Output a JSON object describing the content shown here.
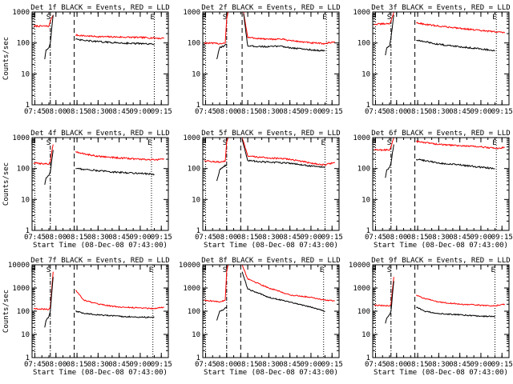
{
  "chart_data": [
    {
      "type": "line",
      "title": "Det 1f BLACK = Events, RED = LLD",
      "ylabel": "Counts/sec",
      "xlabel": "",
      "x_ticks": [
        "07:45",
        "08:00",
        "08:15",
        "08:30",
        "08:45",
        "09:00",
        "09:15"
      ],
      "y_ticks": [
        "1",
        "10",
        "100",
        "1000"
      ],
      "ylim": [
        1,
        1000
      ],
      "xlim": [
        "07:43",
        "09:20"
      ],
      "y_scale": "log",
      "markers": [
        {
          "label": "E",
          "time": "07:45",
          "style": "dotted"
        },
        {
          "label": "S",
          "time": "07:56",
          "style": "dashdot"
        },
        {
          "label": "",
          "time": "08:13",
          "style": "dashed"
        },
        {
          "label": "E",
          "time": "09:10",
          "style": "dotted"
        }
      ],
      "series": [
        {
          "color": "#ff0000",
          "x": [
            "07:44",
            "07:55",
            "07:56",
            "07:58",
            "08:13",
            "08:14",
            "08:20",
            "08:30",
            "08:45",
            "09:00",
            "09:10",
            "09:15",
            "09:17"
          ],
          "y": [
            350,
            350,
            500,
            800,
            null,
            180,
            170,
            160,
            155,
            150,
            145,
            140,
            145
          ]
        },
        {
          "color": "#000000",
          "x": [
            "07:52",
            "07:53",
            "07:55",
            "07:56",
            "07:58",
            "08:13",
            "08:14",
            "08:20",
            "08:30",
            "08:45",
            "09:00",
            "09:10"
          ],
          "y": [
            30,
            60,
            70,
            100,
            800,
            null,
            130,
            120,
            110,
            100,
            95,
            90
          ]
        }
      ]
    },
    {
      "type": "line",
      "title": "Det 2f BLACK = Events, RED = LLD",
      "ylabel": "",
      "xlabel": "",
      "x_ticks": [
        "07:45",
        "08:00",
        "08:15",
        "08:30",
        "08:45",
        "09:00",
        "09:15"
      ],
      "y_ticks": [
        "1",
        "10",
        "100",
        "1000"
      ],
      "ylim": [
        1,
        1000
      ],
      "xlim": [
        "07:43",
        "09:20"
      ],
      "y_scale": "log",
      "markers": [
        {
          "label": "E",
          "time": "07:45",
          "style": "dotted"
        },
        {
          "label": "S",
          "time": "08:00",
          "style": "dashdot"
        },
        {
          "label": "",
          "time": "08:11",
          "style": "dashed"
        },
        {
          "label": "E",
          "time": "09:11",
          "style": "dotted"
        }
      ],
      "series": [
        {
          "color": "#ff0000",
          "x": [
            "07:44",
            "07:55",
            "07:59",
            "08:00",
            "08:01",
            "08:11",
            "08:12",
            "08:15",
            "08:30",
            "08:38",
            "08:45",
            "09:00",
            "09:10",
            "09:17"
          ],
          "y": [
            100,
            95,
            100,
            600,
            1000,
            null,
            1000,
            150,
            130,
            135,
            120,
            100,
            95,
            110
          ]
        },
        {
          "color": "#000000",
          "x": [
            "07:53",
            "07:55",
            "07:58",
            "08:00",
            "08:11",
            "08:12",
            "08:15",
            "08:30",
            "08:38",
            "08:45",
            "09:00",
            "09:10"
          ],
          "y": [
            30,
            70,
            80,
            90,
            null,
            900,
            80,
            75,
            80,
            70,
            60,
            55
          ]
        }
      ]
    },
    {
      "type": "line",
      "title": "Det 3f BLACK = Events, RED = LLD",
      "ylabel": "",
      "xlabel": "",
      "x_ticks": [
        "07:45",
        "08:00",
        "08:15",
        "08:30",
        "08:45",
        "09:00",
        "09:15"
      ],
      "y_ticks": [
        "1",
        "10",
        "100",
        "1000"
      ],
      "ylim": [
        1,
        1000
      ],
      "xlim": [
        "07:43",
        "09:20"
      ],
      "y_scale": "log",
      "markers": [
        {
          "label": "E",
          "time": "07:45",
          "style": "dotted"
        },
        {
          "label": "S",
          "time": "07:56",
          "style": "dashdot"
        },
        {
          "label": "",
          "time": "08:13",
          "style": "dashed"
        },
        {
          "label": "E",
          "time": "09:11",
          "style": "dotted"
        }
      ],
      "series": [
        {
          "color": "#ff0000",
          "x": [
            "07:44",
            "07:55",
            "07:56",
            "07:58",
            "08:13",
            "08:14",
            "08:20",
            "08:30",
            "08:45",
            "09:00",
            "09:15",
            "09:17"
          ],
          "y": [
            400,
            420,
            500,
            1000,
            null,
            450,
            400,
            350,
            300,
            250,
            220,
            210
          ]
        },
        {
          "color": "#000000",
          "x": [
            "07:52",
            "07:53",
            "07:55",
            "07:56",
            "07:58",
            "08:13",
            "08:14",
            "08:20",
            "08:30",
            "08:45",
            "09:00",
            "09:10"
          ],
          "y": [
            40,
            70,
            80,
            150,
            800,
            null,
            120,
            110,
            90,
            75,
            65,
            55
          ]
        }
      ]
    },
    {
      "type": "line",
      "title": "Det 4f BLACK = Events, RED = LLD",
      "ylabel": "Counts/sec",
      "xlabel": "Start Time (08-Dec-08 07:43:00)",
      "x_ticks": [
        "07:45",
        "08:00",
        "08:15",
        "08:30",
        "08:45",
        "09:00",
        "09:15"
      ],
      "y_ticks": [
        "1",
        "10",
        "100",
        "1000"
      ],
      "ylim": [
        1,
        1000
      ],
      "xlim": [
        "07:43",
        "09:20"
      ],
      "y_scale": "log",
      "markers": [
        {
          "label": "E",
          "time": "07:45",
          "style": "dotted"
        },
        {
          "label": "S",
          "time": "07:56",
          "style": "dashdot"
        },
        {
          "label": "",
          "time": "08:13",
          "style": "dashed"
        },
        {
          "label": "E",
          "time": "09:08",
          "style": "dotted"
        }
      ],
      "series": [
        {
          "color": "#ff0000",
          "x": [
            "07:44",
            "07:55",
            "07:56",
            "07:58",
            "08:13",
            "08:14",
            "08:20",
            "08:30",
            "08:45",
            "09:00",
            "09:10",
            "09:17"
          ],
          "y": [
            150,
            140,
            170,
            600,
            null,
            350,
            300,
            250,
            220,
            200,
            190,
            200
          ]
        },
        {
          "color": "#000000",
          "x": [
            "07:52",
            "07:53",
            "07:55",
            "07:56",
            "07:58",
            "08:13",
            "08:14",
            "08:20",
            "08:30",
            "08:45",
            "09:00",
            "09:10"
          ],
          "y": [
            30,
            50,
            60,
            80,
            400,
            null,
            100,
            95,
            85,
            75,
            70,
            65
          ]
        }
      ]
    },
    {
      "type": "line",
      "title": "Det 5f BLACK = Events, RED = LLD",
      "ylabel": "",
      "xlabel": "Start Time (08-Dec-08 07:43:00)",
      "x_ticks": [
        "07:45",
        "08:00",
        "08:15",
        "08:30",
        "08:45",
        "09:00",
        "09:15"
      ],
      "y_ticks": [
        "1",
        "10",
        "100",
        "1000"
      ],
      "ylim": [
        1,
        1000
      ],
      "xlim": [
        "07:43",
        "09:20"
      ],
      "y_scale": "log",
      "markers": [
        {
          "label": "E",
          "time": "07:45",
          "style": "dotted"
        },
        {
          "label": "S",
          "time": "08:00",
          "style": "dashdot"
        },
        {
          "label": "",
          "time": "08:10",
          "style": "dashed"
        },
        {
          "label": "E",
          "time": "09:10",
          "style": "dotted"
        }
      ],
      "series": [
        {
          "color": "#ff0000",
          "x": [
            "07:44",
            "07:55",
            "07:59",
            "08:00",
            "08:01",
            "08:10",
            "08:11",
            "08:15",
            "08:30",
            "08:45",
            "09:00",
            "09:10",
            "09:17"
          ],
          "y": [
            180,
            160,
            170,
            700,
            1000,
            null,
            1000,
            250,
            220,
            200,
            150,
            130,
            160
          ]
        },
        {
          "color": "#000000",
          "x": [
            "07:53",
            "07:55",
            "07:58",
            "08:00",
            "08:10",
            "08:11",
            "08:15",
            "08:30",
            "08:45",
            "09:00",
            "09:10"
          ],
          "y": [
            40,
            90,
            120,
            130,
            null,
            900,
            180,
            160,
            150,
            120,
            110
          ]
        }
      ]
    },
    {
      "type": "line",
      "title": "Det 6f BLACK = Events, RED = LLD",
      "ylabel": "",
      "xlabel": "Start Time (08-Dec-08 07:43:00)",
      "x_ticks": [
        "07:45",
        "08:00",
        "08:15",
        "08:30",
        "08:45",
        "09:00",
        "09:15"
      ],
      "y_ticks": [
        "1",
        "10",
        "100",
        "1000"
      ],
      "ylim": [
        1,
        1000
      ],
      "xlim": [
        "07:43",
        "09:20"
      ],
      "y_scale": "log",
      "markers": [
        {
          "label": "E",
          "time": "07:45",
          "style": "dotted"
        },
        {
          "label": "S",
          "time": "07:56",
          "style": "dashdot"
        },
        {
          "label": "",
          "time": "08:13",
          "style": "dashed"
        },
        {
          "label": "E",
          "time": "09:11",
          "style": "dotted"
        }
      ],
      "series": [
        {
          "color": "#ff0000",
          "x": [
            "07:44",
            "07:55",
            "07:56",
            "07:58",
            "08:13",
            "08:14",
            "08:20",
            "08:30",
            "08:45",
            "09:00",
            "09:10",
            "09:17"
          ],
          "y": [
            400,
            400,
            500,
            1000,
            null,
            750,
            700,
            600,
            550,
            500,
            450,
            480
          ]
        },
        {
          "color": "#000000",
          "x": [
            "07:52",
            "07:53",
            "07:55",
            "07:56",
            "07:58",
            "08:13",
            "08:14",
            "08:20",
            "08:30",
            "08:45",
            "09:00",
            "09:10"
          ],
          "y": [
            50,
            90,
            110,
            150,
            600,
            null,
            200,
            180,
            150,
            130,
            110,
            100
          ]
        }
      ]
    },
    {
      "type": "line",
      "title": "Det 7f BLACK = Events, RED = LLD",
      "ylabel": "Counts/sec",
      "xlabel": "Start Time (08-Dec-08 07:43:00)",
      "x_ticks": [
        "07:45",
        "08:00",
        "08:15",
        "08:30",
        "08:45",
        "09:00",
        "09:15"
      ],
      "y_ticks": [
        "1",
        "10",
        "100",
        "1000",
        "10000"
      ],
      "ylim": [
        1,
        10000
      ],
      "xlim": [
        "07:43",
        "09:20"
      ],
      "y_scale": "log",
      "markers": [
        {
          "label": "E",
          "time": "07:45",
          "style": "dotted"
        },
        {
          "label": "S",
          "time": "07:56",
          "style": "dashdot"
        },
        {
          "label": "",
          "time": "08:13",
          "style": "dashed"
        },
        {
          "label": "E",
          "time": "09:09",
          "style": "dotted"
        }
      ],
      "series": [
        {
          "color": "#ff0000",
          "x": [
            "07:44",
            "07:55",
            "07:56",
            "07:58",
            "08:13",
            "08:14",
            "08:20",
            "08:30",
            "08:45",
            "09:00",
            "09:10",
            "09:17"
          ],
          "y": [
            130,
            120,
            150,
            5000,
            null,
            800,
            300,
            200,
            150,
            140,
            130,
            150
          ]
        },
        {
          "color": "#000000",
          "x": [
            "07:52",
            "07:53",
            "07:55",
            "07:56",
            "07:58",
            "08:13",
            "08:14",
            "08:20",
            "08:30",
            "08:45",
            "09:00",
            "09:10"
          ],
          "y": [
            20,
            40,
            60,
            100,
            3000,
            null,
            100,
            80,
            70,
            60,
            55,
            55
          ]
        }
      ]
    },
    {
      "type": "line",
      "title": "Det 8f BLACK = Events, RED = LLD",
      "ylabel": "",
      "xlabel": "Start Time (08-Dec-08 07:43:00)",
      "x_ticks": [
        "07:45",
        "08:00",
        "08:15",
        "08:30",
        "08:45",
        "09:00",
        "09:15"
      ],
      "y_ticks": [
        "1",
        "10",
        "100",
        "1000",
        "10000"
      ],
      "ylim": [
        1,
        10000
      ],
      "xlim": [
        "07:43",
        "09:20"
      ],
      "y_scale": "log",
      "markers": [
        {
          "label": "E",
          "time": "07:45",
          "style": "dotted"
        },
        {
          "label": "S",
          "time": "08:00",
          "style": "dashdot"
        },
        {
          "label": "",
          "time": "08:10",
          "style": "dashed"
        },
        {
          "label": "E",
          "time": "09:09",
          "style": "dotted"
        }
      ],
      "series": [
        {
          "color": "#ff0000",
          "x": [
            "07:44",
            "07:55",
            "07:59",
            "08:00",
            "08:01",
            "08:10",
            "08:11",
            "08:15",
            "08:30",
            "08:38",
            "08:45",
            "09:00",
            "09:10",
            "09:17"
          ],
          "y": [
            300,
            250,
            300,
            5000,
            10000,
            null,
            10000,
            2500,
            1000,
            700,
            500,
            400,
            300,
            280
          ]
        },
        {
          "color": "#000000",
          "x": [
            "07:53",
            "07:55",
            "07:58",
            "08:00",
            "08:10",
            "08:11",
            "08:15",
            "08:30",
            "08:45",
            "09:00",
            "09:10"
          ],
          "y": [
            40,
            100,
            120,
            150,
            null,
            5000,
            900,
            400,
            250,
            150,
            100
          ]
        }
      ]
    },
    {
      "type": "line",
      "title": "Det 9f BLACK = Events, RED = LLD",
      "ylabel": "",
      "xlabel": "Start Time (08-Dec-08 07:43:00)",
      "x_ticks": [
        "07:45",
        "08:00",
        "08:15",
        "08:30",
        "08:45",
        "09:00",
        "09:15"
      ],
      "y_ticks": [
        "1",
        "10",
        "100",
        "1000",
        "10000"
      ],
      "ylim": [
        1,
        10000
      ],
      "xlim": [
        "07:43",
        "09:20"
      ],
      "y_scale": "log",
      "markers": [
        {
          "label": "E",
          "time": "07:45",
          "style": "dotted"
        },
        {
          "label": "S",
          "time": "07:56",
          "style": "dashdot"
        },
        {
          "label": "",
          "time": "08:13",
          "style": "dashed"
        },
        {
          "label": "E",
          "time": "09:10",
          "style": "dotted"
        }
      ],
      "series": [
        {
          "color": "#ff0000",
          "x": [
            "07:44",
            "07:55",
            "07:56",
            "07:58",
            "08:13",
            "08:14",
            "08:20",
            "08:30",
            "08:45",
            "09:00",
            "09:10",
            "09:17"
          ],
          "y": [
            180,
            170,
            200,
            3000,
            null,
            500,
            350,
            250,
            200,
            180,
            170,
            200
          ]
        },
        {
          "color": "#000000",
          "x": [
            "07:52",
            "07:53",
            "07:55",
            "07:56",
            "07:58",
            "08:13",
            "08:14",
            "08:20",
            "08:30",
            "08:45",
            "09:00",
            "09:10"
          ],
          "y": [
            30,
            50,
            70,
            100,
            2000,
            null,
            150,
            100,
            80,
            70,
            60,
            60
          ]
        }
      ]
    }
  ]
}
